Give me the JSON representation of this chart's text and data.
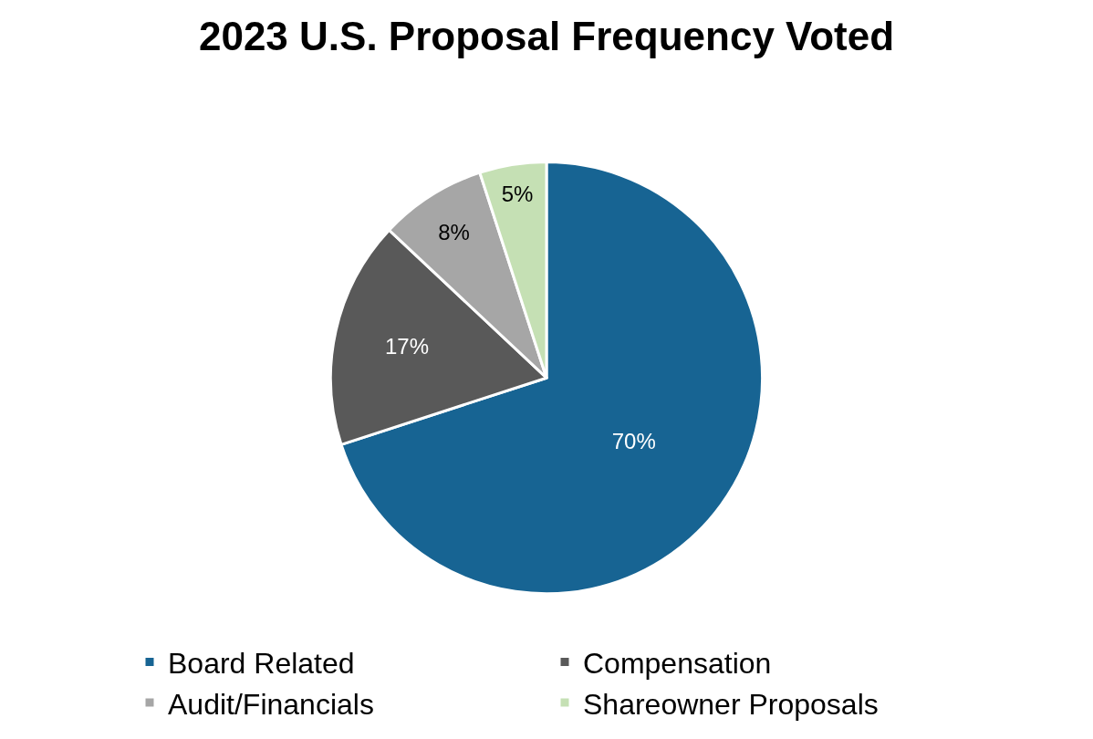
{
  "chart_data": {
    "type": "pie",
    "title": "2023 U.S. Proposal Frequency Voted",
    "categories": [
      "Board Related",
      "Compensation",
      "Audit/Financials",
      "Shareowner Proposals"
    ],
    "values": [
      70,
      17,
      8,
      5
    ],
    "colors": [
      "#176493",
      "#595959",
      "#a6a6a6",
      "#c5e0b4"
    ],
    "value_labels": [
      "70%",
      "17%",
      "8%",
      "5%"
    ],
    "legend": "bottom"
  }
}
